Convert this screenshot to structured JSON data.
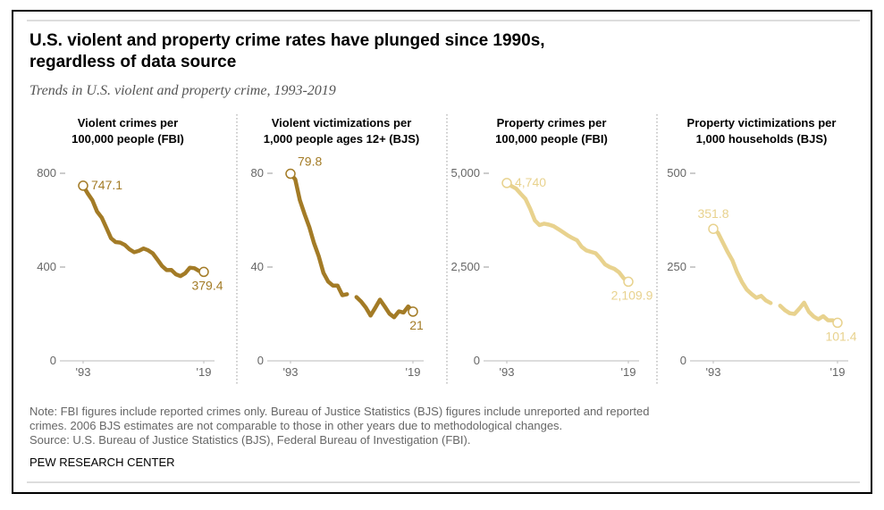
{
  "title": [
    "U.S. violent and property crime rates have plunged since 1990s,",
    "regardless of data source"
  ],
  "subtitle": "Trends in U.S. violent and property crime, 1993-2019",
  "note": [
    "Note: FBI figures include reported crimes only. Bureau of Justice Statistics (BJS) figures include unreported and reported",
    "crimes. 2006 BJS estimates are not comparable to those in other years due to methodological changes.",
    "Source: U.S. Bureau of Justice Statistics (BJS), Federal Bureau of Investigation (FBI)."
  ],
  "branding": "PEW RESEARCH CENTER",
  "chart_data": [
    {
      "type": "line",
      "title": [
        "Violent crimes per",
        "100,000 people (FBI)"
      ],
      "color": "#a37b26",
      "x": [
        1993,
        1994,
        1995,
        1996,
        1997,
        1998,
        1999,
        2000,
        2001,
        2002,
        2003,
        2004,
        2005,
        2006,
        2007,
        2008,
        2009,
        2010,
        2011,
        2012,
        2013,
        2014,
        2015,
        2016,
        2017,
        2018,
        2019
      ],
      "values": [
        747.1,
        713.6,
        684.5,
        636.6,
        611.0,
        567.6,
        523.0,
        506.5,
        504.5,
        494.4,
        475.8,
        463.2,
        469.0,
        479.3,
        471.8,
        458.6,
        431.9,
        404.5,
        387.1,
        387.8,
        369.1,
        361.6,
        373.7,
        397.5,
        394.9,
        383.4,
        379.4
      ],
      "value_labels": [
        "747.1",
        null,
        null,
        null,
        null,
        null,
        null,
        null,
        null,
        null,
        null,
        null,
        null,
        null,
        null,
        null,
        null,
        null,
        null,
        null,
        null,
        null,
        null,
        null,
        null,
        null,
        "379.4"
      ],
      "xlim": [
        1993,
        2019
      ],
      "xticks": [
        {
          "value": 1993,
          "label": "'93"
        },
        {
          "value": 2019,
          "label": "'19"
        }
      ],
      "ylim": [
        0,
        800
      ],
      "yticks": [
        0,
        400,
        800
      ]
    },
    {
      "type": "line",
      "title": [
        "Violent victimizations per",
        "1,000 people ages 12+ (BJS)"
      ],
      "color": "#a37b26",
      "x": [
        1993,
        1994,
        1995,
        1996,
        1997,
        1998,
        1999,
        2000,
        2001,
        2002,
        2003,
        2004,
        2005,
        2006,
        2007,
        2008,
        2009,
        2010,
        2011,
        2012,
        2013,
        2014,
        2015,
        2016,
        2017,
        2018,
        2019
      ],
      "values": [
        79.8,
        77.4,
        68.5,
        62.5,
        57.0,
        50.2,
        44.6,
        37.5,
        33.8,
        32.1,
        32.1,
        28.0,
        28.4,
        null,
        27.2,
        25.3,
        22.7,
        19.3,
        22.6,
        26.1,
        23.2,
        20.1,
        18.6,
        21.1,
        20.6,
        23.2,
        21
      ],
      "value_labels": [
        "79.8",
        null,
        null,
        null,
        null,
        null,
        null,
        null,
        null,
        null,
        null,
        null,
        null,
        null,
        null,
        null,
        null,
        null,
        null,
        null,
        null,
        null,
        null,
        null,
        null,
        null,
        "21"
      ],
      "xlim": [
        1993,
        2019
      ],
      "xticks": [
        {
          "value": 1993,
          "label": "'93"
        },
        {
          "value": 2019,
          "label": "'19"
        }
      ],
      "ylim": [
        0,
        80
      ],
      "yticks": [
        0,
        40,
        80
      ]
    },
    {
      "type": "line",
      "title": [
        "Property crimes per",
        "100,000 people (FBI)"
      ],
      "color": "#e8d28e",
      "x": [
        1993,
        1994,
        1995,
        1996,
        1997,
        1998,
        1999,
        2000,
        2001,
        2002,
        2003,
        2004,
        2005,
        2006,
        2007,
        2008,
        2009,
        2010,
        2011,
        2012,
        2013,
        2014,
        2015,
        2016,
        2017,
        2018,
        2019
      ],
      "values": [
        4740,
        4660.2,
        4590.5,
        4451.0,
        4316.3,
        4052.5,
        3743.6,
        3618.3,
        3658.1,
        3630.6,
        3591.2,
        3514.1,
        3431.5,
        3346.6,
        3276.4,
        3214.6,
        3041.3,
        2945.9,
        2905.4,
        2868.0,
        2733.6,
        2574.1,
        2500.5,
        2451.6,
        2362.9,
        2199.5,
        2109.9
      ],
      "value_labels": [
        "4,740",
        null,
        null,
        null,
        null,
        null,
        null,
        null,
        null,
        null,
        null,
        null,
        null,
        null,
        null,
        null,
        null,
        null,
        null,
        null,
        null,
        null,
        null,
        null,
        null,
        null,
        "2,109.9"
      ],
      "xlim": [
        1993,
        2019
      ],
      "xticks": [
        {
          "value": 1993,
          "label": "'93"
        },
        {
          "value": 2019,
          "label": "'19"
        }
      ],
      "ylim": [
        0,
        5000
      ],
      "yticks": [
        0,
        {
          "value": 2500,
          "label": "2,500"
        },
        {
          "value": 5000,
          "label": "5,000"
        }
      ]
    },
    {
      "type": "line",
      "title": [
        "Property victimizations per",
        "1,000 households (BJS)"
      ],
      "color": "#e8d28e",
      "x": [
        1993,
        1994,
        1995,
        1996,
        1997,
        1998,
        1999,
        2000,
        2001,
        2002,
        2003,
        2004,
        2005,
        2006,
        2007,
        2008,
        2009,
        2010,
        2011,
        2012,
        2013,
        2014,
        2015,
        2016,
        2017,
        2018,
        2019
      ],
      "values": [
        351.8,
        341.2,
        315.5,
        290.5,
        267.8,
        236.0,
        210.0,
        190.0,
        178.0,
        168.0,
        173.0,
        161.0,
        154.0,
        null,
        147.0,
        135.0,
        127.0,
        125.0,
        139.0,
        155.0,
        131.0,
        118.0,
        111.0,
        119.0,
        108.0,
        108.0,
        101.4
      ],
      "value_labels": [
        "351.8",
        null,
        null,
        null,
        null,
        null,
        null,
        null,
        null,
        null,
        null,
        null,
        null,
        null,
        null,
        null,
        null,
        null,
        null,
        null,
        null,
        null,
        null,
        null,
        null,
        null,
        "101.4"
      ],
      "xlim": [
        1993,
        2019
      ],
      "xticks": [
        {
          "value": 1993,
          "label": "'93"
        },
        {
          "value": 2019,
          "label": "'19"
        }
      ],
      "ylim": [
        0,
        500
      ],
      "yticks": [
        0,
        250,
        500
      ]
    }
  ]
}
